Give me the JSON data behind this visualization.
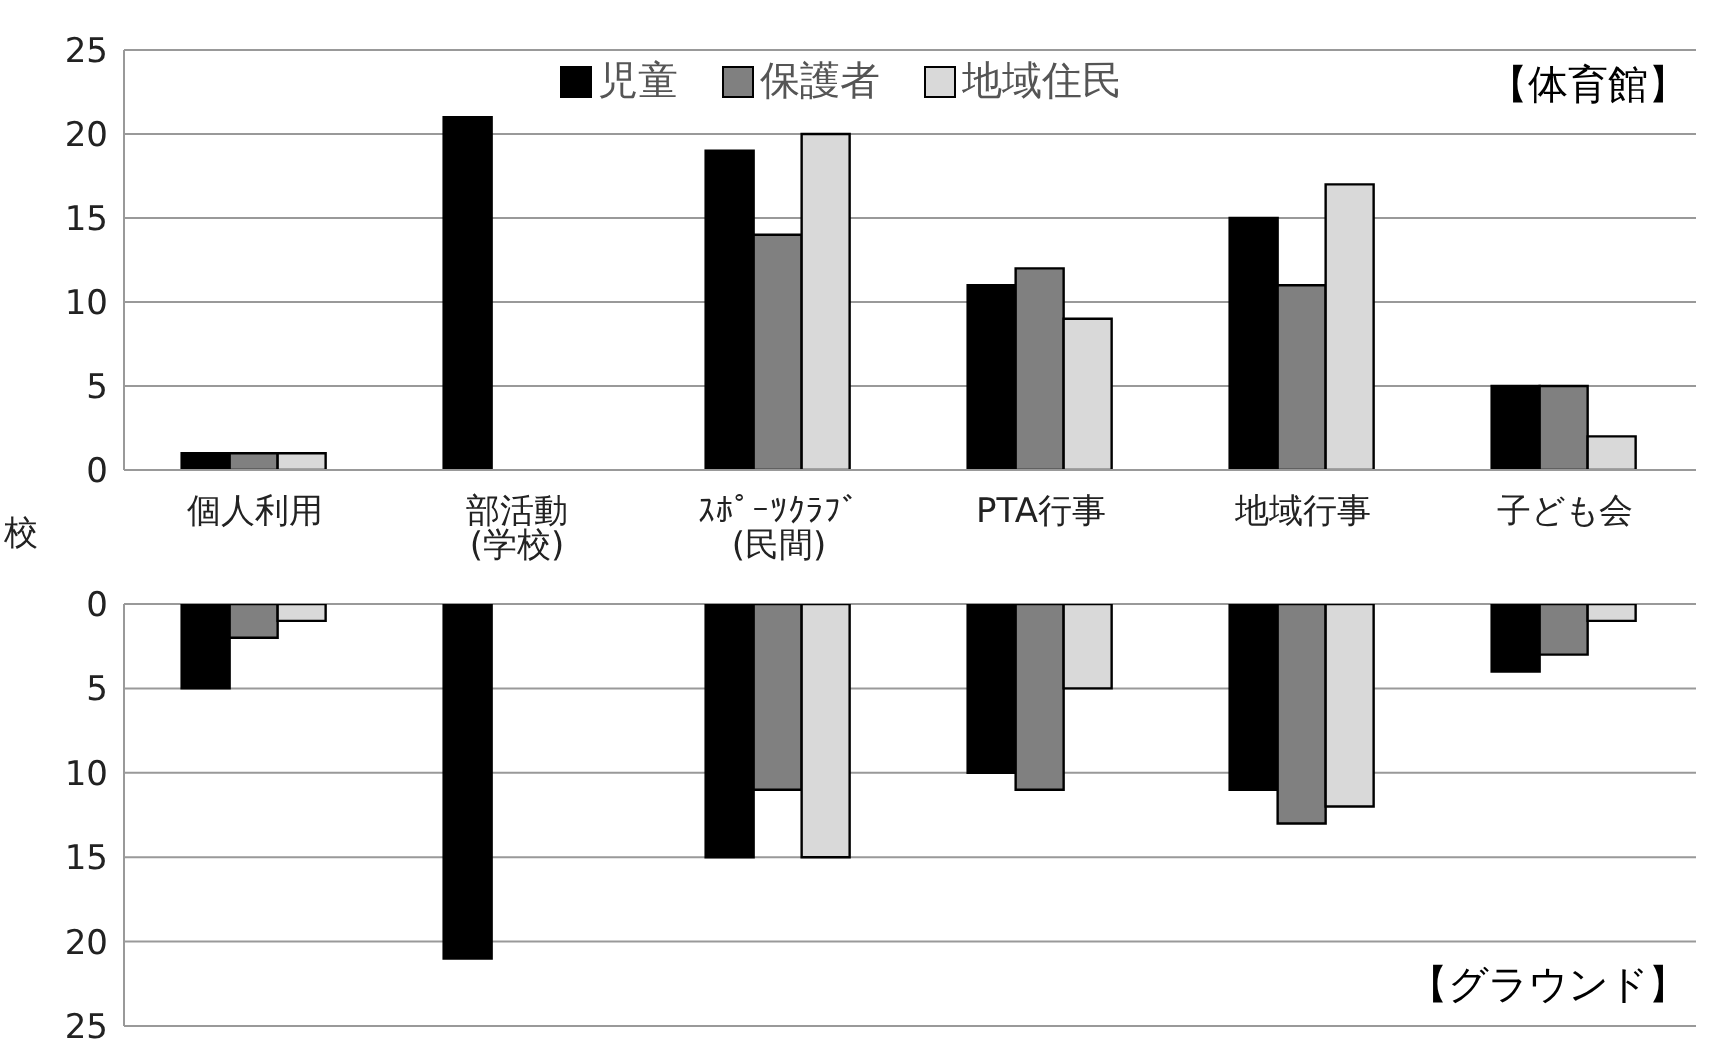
{
  "chart_data": [
    {
      "type": "bar",
      "title": "【体育館】",
      "ylabel": "校",
      "categories": [
        "個人利用",
        "部活動\n(学校)",
        "ｽﾎﾟｰﾂｸﾗﾌﾞ\n(民間)",
        "PTA行事",
        "地域行事",
        "子ども会"
      ],
      "series": [
        {
          "name": "児童",
          "color": "#000000",
          "values": [
            1,
            21,
            19,
            11,
            15,
            5
          ]
        },
        {
          "name": "保護者",
          "color": "#808080",
          "values": [
            1,
            0,
            14,
            12,
            11,
            5
          ]
        },
        {
          "name": "地域住民",
          "color": "#d9d9d9",
          "values": [
            1,
            0,
            20,
            9,
            17,
            2
          ]
        }
      ],
      "ylim": [
        0,
        25
      ],
      "yticks": [
        0,
        5,
        10,
        15,
        20,
        25
      ],
      "grid": "y",
      "legend": "top"
    },
    {
      "type": "bar",
      "title": "【グラウンド】",
      "categories": [
        null,
        null,
        null,
        null,
        null,
        null
      ],
      "series": [
        {
          "color": "#000000",
          "values": [
            5,
            21,
            15,
            10,
            11,
            4
          ]
        },
        {
          "color": "#808080",
          "values": [
            2,
            0,
            11,
            11,
            13,
            3
          ]
        },
        {
          "color": "#d9d9d9",
          "values": [
            1,
            0,
            15,
            5,
            12,
            1
          ]
        }
      ],
      "ylim": [
        25,
        0
      ],
      "yticks": [
        0,
        5,
        10,
        15,
        20,
        25
      ],
      "grid": "y",
      "tick_labels": "y"
    }
  ]
}
